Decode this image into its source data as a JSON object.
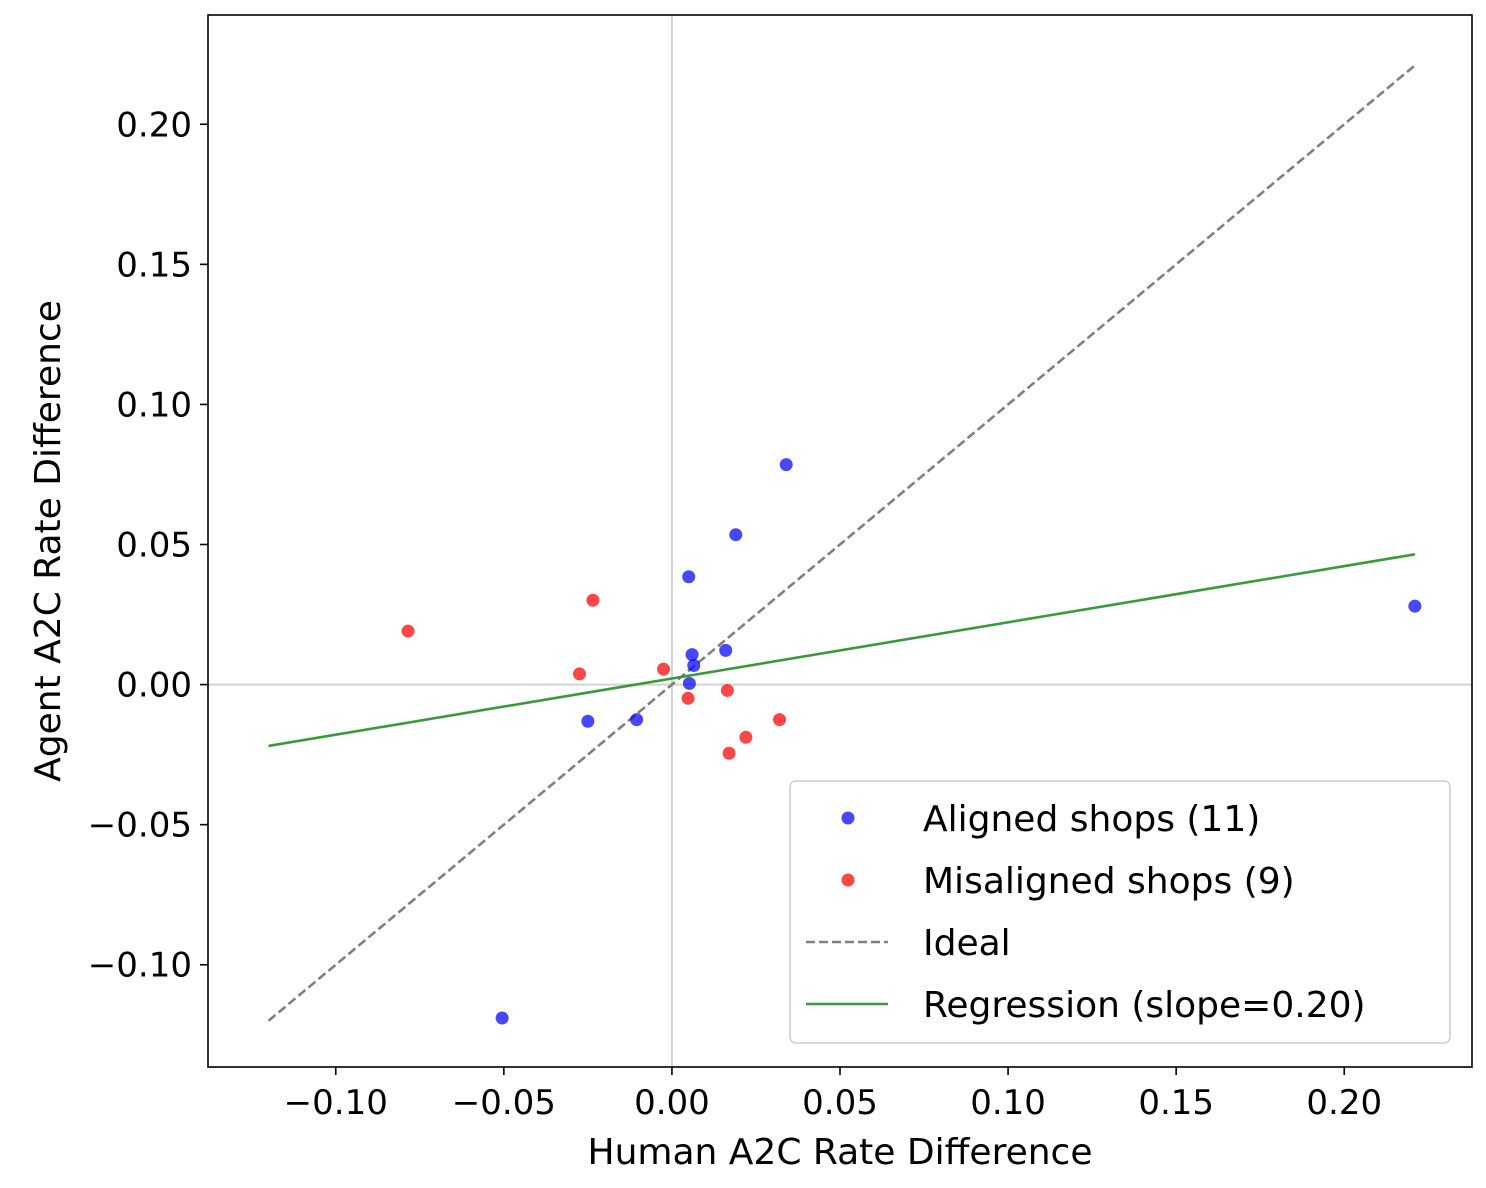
{
  "chart_data": {
    "type": "scatter",
    "title": "",
    "xlabel": "Human A2C Rate Difference",
    "ylabel": "Agent A2C Rate Difference",
    "xlim": [
      -0.138,
      0.238
    ],
    "ylim": [
      -0.1365,
      0.239
    ],
    "x_ticks": [
      -0.1,
      -0.05,
      0.0,
      0.05,
      0.1,
      0.15,
      0.2
    ],
    "x_tick_labels": [
      "−0.10",
      "−0.05",
      "0.00",
      "0.05",
      "0.10",
      "0.15",
      "0.20"
    ],
    "y_ticks": [
      -0.1,
      -0.05,
      0.0,
      0.05,
      0.1,
      0.15,
      0.2
    ],
    "y_tick_labels": [
      "−0.10",
      "−0.05",
      "0.00",
      "0.05",
      "0.10",
      "0.15",
      "0.20"
    ],
    "grid": false,
    "reference_lines": {
      "x0": true,
      "y0": true,
      "color": "#d3d3d3"
    },
    "legend_position": "lower-right",
    "series": [
      {
        "name": "Aligned shops (11)",
        "kind": "scatter",
        "color": "#0000ff",
        "points": [
          {
            "x": 0.034,
            "y": 0.0785
          },
          {
            "x": 0.019,
            "y": 0.0535
          },
          {
            "x": 0.005,
            "y": 0.0385
          },
          {
            "x": 0.221,
            "y": 0.028
          },
          {
            "x": 0.016,
            "y": 0.0122
          },
          {
            "x": 0.006,
            "y": 0.0107
          },
          {
            "x": 0.0065,
            "y": 0.0068
          },
          {
            "x": 0.0052,
            "y": 0.0004
          },
          {
            "x": -0.0105,
            "y": -0.0125
          },
          {
            "x": -0.025,
            "y": -0.0131
          },
          {
            "x": -0.0505,
            "y": -0.119
          }
        ]
      },
      {
        "name": "Misaligned shops (9)",
        "kind": "scatter",
        "color": "#ff0000",
        "points": [
          {
            "x": -0.0235,
            "y": 0.0301
          },
          {
            "x": -0.0785,
            "y": 0.0191
          },
          {
            "x": -0.0275,
            "y": 0.0038
          },
          {
            "x": -0.0025,
            "y": 0.0055
          },
          {
            "x": 0.0048,
            "y": -0.0049
          },
          {
            "x": 0.0165,
            "y": -0.0021
          },
          {
            "x": 0.032,
            "y": -0.0125
          },
          {
            "x": 0.022,
            "y": -0.0188
          },
          {
            "x": 0.017,
            "y": -0.0245
          }
        ]
      },
      {
        "name": "Ideal",
        "kind": "line",
        "style": "dashed",
        "color": "#808080",
        "x": [
          -0.12,
          0.221
        ],
        "y": [
          -0.12,
          0.221
        ]
      },
      {
        "name": "Regression (slope=0.20)",
        "kind": "line",
        "style": "solid",
        "color": "#3a9a3a",
        "x": [
          -0.12,
          0.221
        ],
        "y": [
          -0.0219,
          0.0465
        ]
      }
    ]
  }
}
